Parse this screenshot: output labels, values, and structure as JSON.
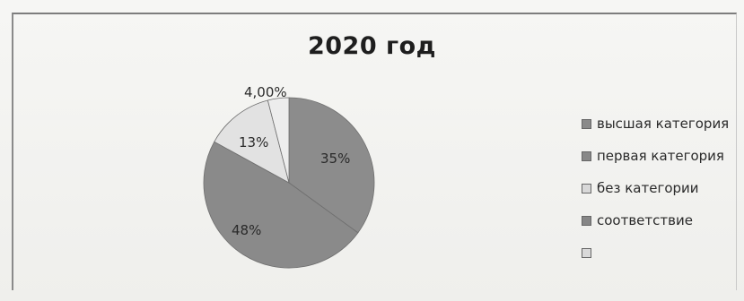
{
  "chart_data": {
    "type": "pie",
    "title": "2020 год",
    "slices": [
      {
        "label": "35%",
        "value": 35,
        "color": "#8c8c8c"
      },
      {
        "label": "48%",
        "value": 48,
        "color": "#8a8a8a"
      },
      {
        "label": "13%",
        "value": 13,
        "color": "#e2e2e2"
      },
      {
        "label": "4,00%",
        "value": 4,
        "color": "#ededed"
      }
    ],
    "legend": {
      "position": "right",
      "entries": [
        {
          "label": "высшая категория",
          "color": "#8a8a8a"
        },
        {
          "label": "первая категория",
          "color": "#888888"
        },
        {
          "label": "без категории",
          "color": "#d8d8d8"
        },
        {
          "label": "соответствие",
          "color": "#868686"
        },
        {
          "label": "",
          "color": "#d9d9d9"
        }
      ]
    }
  }
}
